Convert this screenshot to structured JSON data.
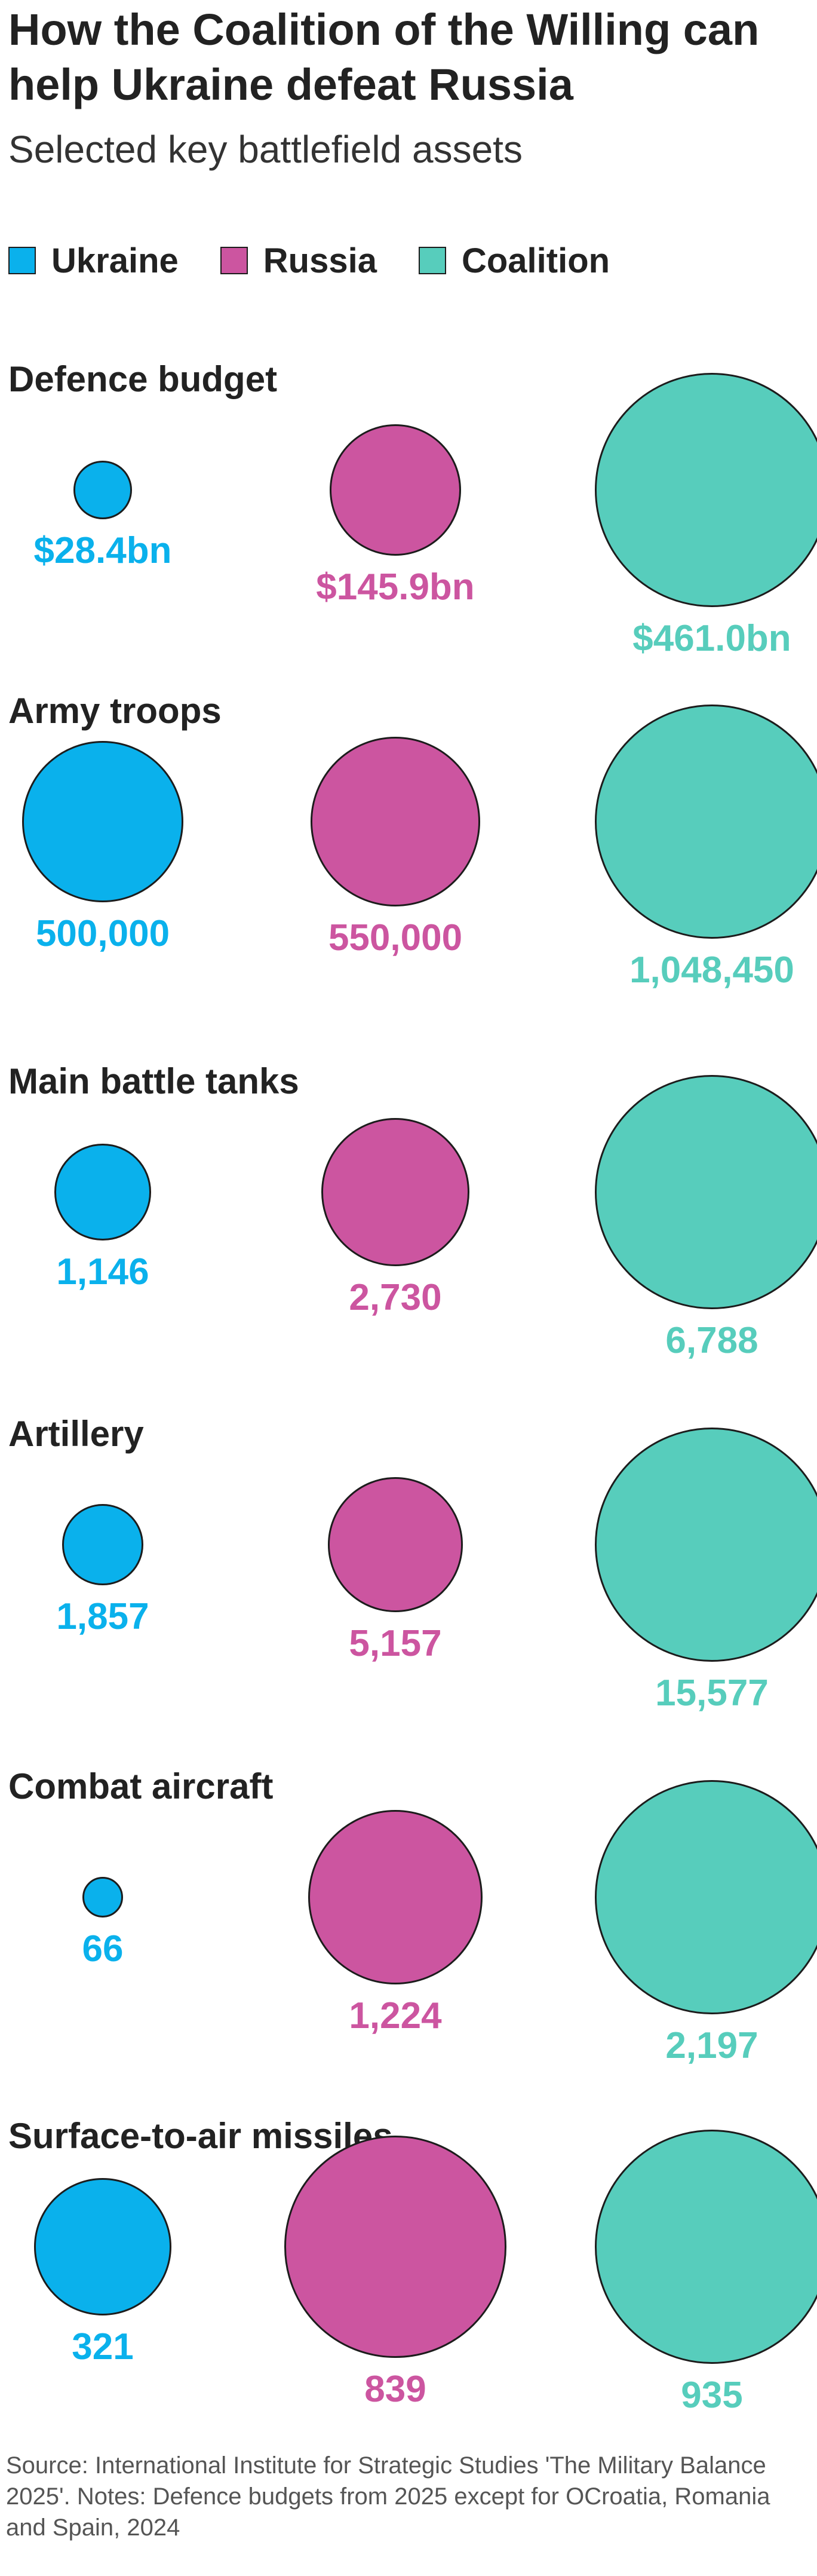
{
  "title": "How the Coalition of the Willing can help Ukraine defeat Russia",
  "subtitle": "Selected key battlefield assets",
  "legend": [
    {
      "name": "Ukraine",
      "color": "#0ab1ec"
    },
    {
      "name": "Russia",
      "color": "#cc55a0"
    },
    {
      "name": "Coalition",
      "color": "#57cdbc"
    }
  ],
  "chart_data": {
    "type": "proportional-circles",
    "series": [
      "Ukraine",
      "Russia",
      "Coalition"
    ],
    "panels": [
      {
        "title": "Defence budget",
        "values": [
          28.4,
          145.9,
          461.0
        ],
        "labels": [
          "$28.4bn",
          "$145.9bn",
          "$461.0bn"
        ],
        "unit": "US$ bn"
      },
      {
        "title": "Army troops",
        "values": [
          500000,
          550000,
          1048450
        ],
        "labels": [
          "500,000",
          "550,000",
          "1,048,450"
        ]
      },
      {
        "title": "Main battle tanks",
        "values": [
          1146,
          2730,
          6788
        ],
        "labels": [
          "1,146",
          "2,730",
          "6,788"
        ]
      },
      {
        "title": "Artillery",
        "values": [
          1857,
          5157,
          15577
        ],
        "labels": [
          "1,857",
          "5,157",
          "15,577"
        ]
      },
      {
        "title": "Combat aircraft",
        "values": [
          66,
          1224,
          2197
        ],
        "labels": [
          "66",
          "1,224",
          "2,197"
        ]
      },
      {
        "title": "Surface-to-air missiles",
        "values": [
          321,
          839,
          935
        ],
        "labels": [
          "321",
          "839",
          "935"
        ]
      }
    ]
  },
  "source": "Source: International Institute for Strategic Studies 'The Military Balance 2025'. Notes: Defence budgets from 2025 except for OCroatia, Romania and Spain, 2024"
}
